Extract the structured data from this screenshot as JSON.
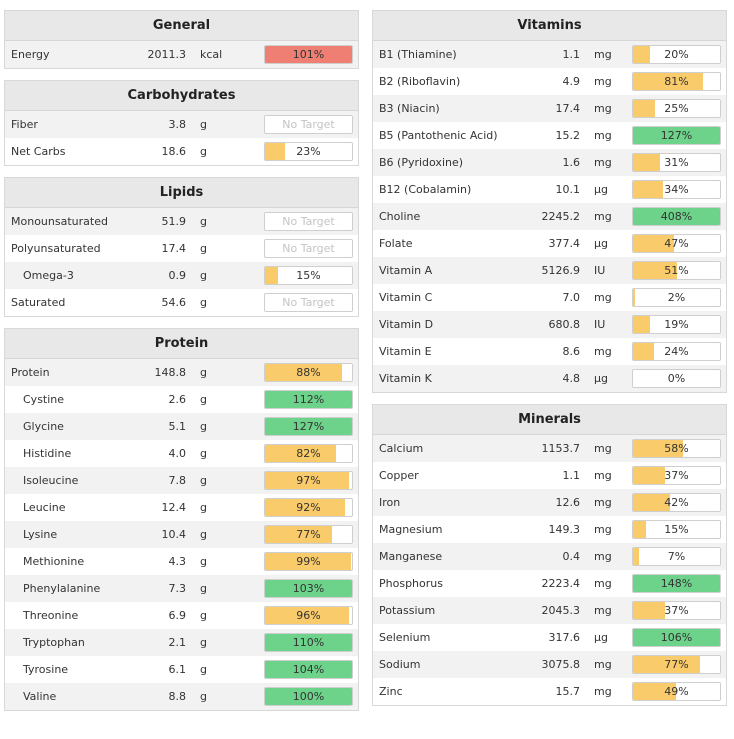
{
  "colors": {
    "yellow": "#f9cb6a",
    "green": "#6dd38a",
    "red": "#ef7f73"
  },
  "left": [
    {
      "title": "General",
      "rows": [
        {
          "name": "Energy",
          "amount": "2011.3",
          "unit": "kcal",
          "pct": "101%",
          "value": 101,
          "color": "red"
        }
      ]
    },
    {
      "title": "Carbohydrates",
      "rows": [
        {
          "name": "Fiber",
          "amount": "3.8",
          "unit": "g",
          "pct": "No Target",
          "value": null,
          "color": null
        },
        {
          "name": "Net Carbs",
          "amount": "18.6",
          "unit": "g",
          "pct": "23%",
          "value": 23,
          "color": "yellow"
        }
      ]
    },
    {
      "title": "Lipids",
      "rows": [
        {
          "name": "Monounsaturated",
          "amount": "51.9",
          "unit": "g",
          "pct": "No Target",
          "value": null,
          "color": null
        },
        {
          "name": "Polyunsaturated",
          "amount": "17.4",
          "unit": "g",
          "pct": "No Target",
          "value": null,
          "color": null
        },
        {
          "name": "Omega-3",
          "amount": "0.9",
          "unit": "g",
          "pct": "15%",
          "value": 15,
          "color": "yellow",
          "indent": true
        },
        {
          "name": "Saturated",
          "amount": "54.6",
          "unit": "g",
          "pct": "No Target",
          "value": null,
          "color": null
        }
      ]
    },
    {
      "title": "Protein",
      "rows": [
        {
          "name": "Protein",
          "amount": "148.8",
          "unit": "g",
          "pct": "88%",
          "value": 88,
          "color": "yellow"
        },
        {
          "name": "Cystine",
          "amount": "2.6",
          "unit": "g",
          "pct": "112%",
          "value": 112,
          "color": "green",
          "indent": true
        },
        {
          "name": "Glycine",
          "amount": "5.1",
          "unit": "g",
          "pct": "127%",
          "value": 127,
          "color": "green",
          "indent": true
        },
        {
          "name": "Histidine",
          "amount": "4.0",
          "unit": "g",
          "pct": "82%",
          "value": 82,
          "color": "yellow",
          "indent": true
        },
        {
          "name": "Isoleucine",
          "amount": "7.8",
          "unit": "g",
          "pct": "97%",
          "value": 97,
          "color": "yellow",
          "indent": true
        },
        {
          "name": "Leucine",
          "amount": "12.4",
          "unit": "g",
          "pct": "92%",
          "value": 92,
          "color": "yellow",
          "indent": true
        },
        {
          "name": "Lysine",
          "amount": "10.4",
          "unit": "g",
          "pct": "77%",
          "value": 77,
          "color": "yellow",
          "indent": true
        },
        {
          "name": "Methionine",
          "amount": "4.3",
          "unit": "g",
          "pct": "99%",
          "value": 99,
          "color": "yellow",
          "indent": true
        },
        {
          "name": "Phenylalanine",
          "amount": "7.3",
          "unit": "g",
          "pct": "103%",
          "value": 103,
          "color": "green",
          "indent": true
        },
        {
          "name": "Threonine",
          "amount": "6.9",
          "unit": "g",
          "pct": "96%",
          "value": 96,
          "color": "yellow",
          "indent": true
        },
        {
          "name": "Tryptophan",
          "amount": "2.1",
          "unit": "g",
          "pct": "110%",
          "value": 110,
          "color": "green",
          "indent": true
        },
        {
          "name": "Tyrosine",
          "amount": "6.1",
          "unit": "g",
          "pct": "104%",
          "value": 104,
          "color": "green",
          "indent": true
        },
        {
          "name": "Valine",
          "amount": "8.8",
          "unit": "g",
          "pct": "100%",
          "value": 100,
          "color": "green",
          "indent": true
        }
      ]
    }
  ],
  "right": [
    {
      "title": "Vitamins",
      "rows": [
        {
          "name": "B1 (Thiamine)",
          "amount": "1.1",
          "unit": "mg",
          "pct": "20%",
          "value": 20,
          "color": "yellow"
        },
        {
          "name": "B2 (Riboflavin)",
          "amount": "4.9",
          "unit": "mg",
          "pct": "81%",
          "value": 81,
          "color": "yellow"
        },
        {
          "name": "B3 (Niacin)",
          "amount": "17.4",
          "unit": "mg",
          "pct": "25%",
          "value": 25,
          "color": "yellow"
        },
        {
          "name": "B5 (Pantothenic Acid)",
          "amount": "15.2",
          "unit": "mg",
          "pct": "127%",
          "value": 127,
          "color": "green"
        },
        {
          "name": "B6 (Pyridoxine)",
          "amount": "1.6",
          "unit": "mg",
          "pct": "31%",
          "value": 31,
          "color": "yellow"
        },
        {
          "name": "B12 (Cobalamin)",
          "amount": "10.1",
          "unit": "µg",
          "pct": "34%",
          "value": 34,
          "color": "yellow"
        },
        {
          "name": "Choline",
          "amount": "2245.2",
          "unit": "mg",
          "pct": "408%",
          "value": 408,
          "color": "green"
        },
        {
          "name": "Folate",
          "amount": "377.4",
          "unit": "µg",
          "pct": "47%",
          "value": 47,
          "color": "yellow"
        },
        {
          "name": "Vitamin A",
          "amount": "5126.9",
          "unit": "IU",
          "pct": "51%",
          "value": 51,
          "color": "yellow"
        },
        {
          "name": "Vitamin C",
          "amount": "7.0",
          "unit": "mg",
          "pct": "2%",
          "value": 2,
          "color": "yellow"
        },
        {
          "name": "Vitamin D",
          "amount": "680.8",
          "unit": "IU",
          "pct": "19%",
          "value": 19,
          "color": "yellow"
        },
        {
          "name": "Vitamin E",
          "amount": "8.6",
          "unit": "mg",
          "pct": "24%",
          "value": 24,
          "color": "yellow"
        },
        {
          "name": "Vitamin K",
          "amount": "4.8",
          "unit": "µg",
          "pct": "0%",
          "value": 0,
          "color": "yellow"
        }
      ]
    },
    {
      "title": "Minerals",
      "rows": [
        {
          "name": "Calcium",
          "amount": "1153.7",
          "unit": "mg",
          "pct": "58%",
          "value": 58,
          "color": "yellow"
        },
        {
          "name": "Copper",
          "amount": "1.1",
          "unit": "mg",
          "pct": "37%",
          "value": 37,
          "color": "yellow"
        },
        {
          "name": "Iron",
          "amount": "12.6",
          "unit": "mg",
          "pct": "42%",
          "value": 42,
          "color": "yellow"
        },
        {
          "name": "Magnesium",
          "amount": "149.3",
          "unit": "mg",
          "pct": "15%",
          "value": 15,
          "color": "yellow"
        },
        {
          "name": "Manganese",
          "amount": "0.4",
          "unit": "mg",
          "pct": "7%",
          "value": 7,
          "color": "yellow"
        },
        {
          "name": "Phosphorus",
          "amount": "2223.4",
          "unit": "mg",
          "pct": "148%",
          "value": 148,
          "color": "green"
        },
        {
          "name": "Potassium",
          "amount": "2045.3",
          "unit": "mg",
          "pct": "37%",
          "value": 37,
          "color": "yellow"
        },
        {
          "name": "Selenium",
          "amount": "317.6",
          "unit": "µg",
          "pct": "106%",
          "value": 106,
          "color": "green"
        },
        {
          "name": "Sodium",
          "amount": "3075.8",
          "unit": "mg",
          "pct": "77%",
          "value": 77,
          "color": "yellow"
        },
        {
          "name": "Zinc",
          "amount": "15.7",
          "unit": "mg",
          "pct": "49%",
          "value": 49,
          "color": "yellow"
        }
      ]
    }
  ]
}
